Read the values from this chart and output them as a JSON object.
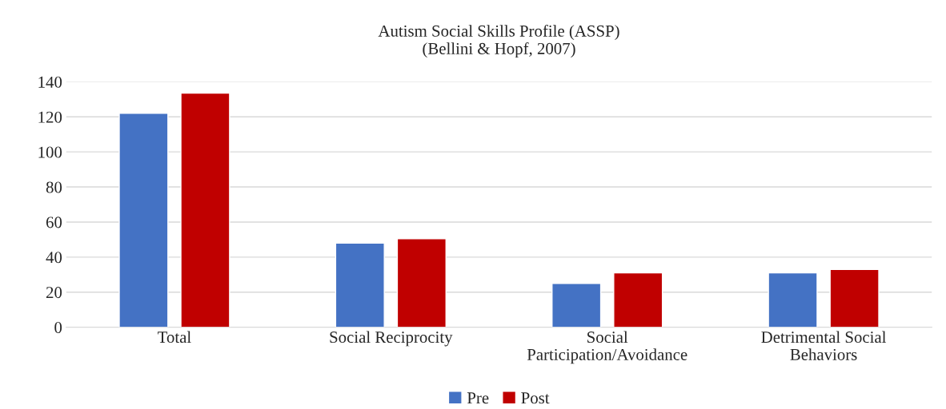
{
  "chart_data": {
    "type": "bar",
    "title": "Autism Social Skills Profile (ASSP)\n(Bellini & Hopf, 2007)",
    "categories": [
      "Total",
      "Social Reciprocity",
      "Social\nParticipation/Avoidance",
      "Detrimental Social\nBehaviors"
    ],
    "series": [
      {
        "name": "Pre",
        "color": "#4472c4",
        "values": [
          122,
          48,
          25,
          31
        ]
      },
      {
        "name": "Post",
        "color": "#c00000",
        "values": [
          133.5,
          50.5,
          31,
          33
        ]
      }
    ],
    "ylim": [
      0,
      140
    ],
    "yticks": [
      0,
      20,
      40,
      60,
      80,
      100,
      120,
      140
    ],
    "grid": "y",
    "legend": "bottom"
  }
}
